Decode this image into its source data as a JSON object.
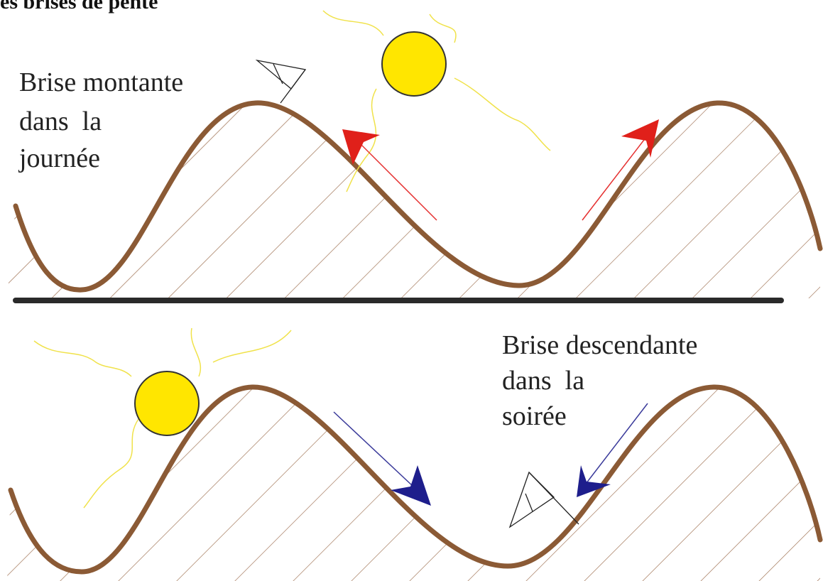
{
  "header": {
    "title": "Les brises de pente"
  },
  "top_panel": {
    "label_lines": [
      "Brise montante",
      "dans  la",
      "journée"
    ]
  },
  "bottom_panel": {
    "label_lines": [
      "Brise descendante",
      "dans  la",
      "soirée"
    ]
  }
}
